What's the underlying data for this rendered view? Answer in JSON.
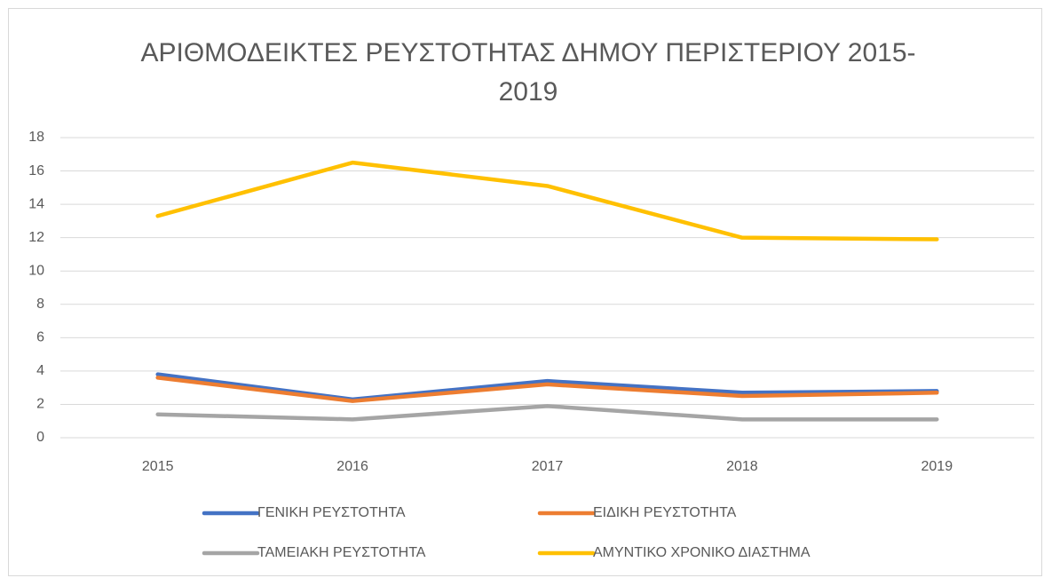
{
  "chart_data": {
    "type": "line",
    "title": "ΑΡΙΘΜΟΔΕΙΚΤΕΣ ΡΕΥΣΤΟΤΗΤΑΣ ΔΗΜΟΥ ΠΕΡΙΣΤΕΡΙΟΥ 2015-2019",
    "categories": [
      "2015",
      "2016",
      "2017",
      "2018",
      "2019"
    ],
    "series": [
      {
        "name": "ΓΕΝΙΚΗ ΡΕΥΣΤΟΤΗΤΑ",
        "color": "#4472c4",
        "values": [
          3.8,
          2.3,
          3.4,
          2.7,
          2.8
        ]
      },
      {
        "name": "ΕΙΔΙΚΗ ΡΕΥΣΤΟΤΗΤΑ",
        "color": "#ed7d31",
        "values": [
          3.6,
          2.2,
          3.2,
          2.5,
          2.7
        ]
      },
      {
        "name": "ΤΑΜΕΙΑΚΗ ΡΕΥΣΤΟΤΗΤΑ",
        "color": "#a5a5a5",
        "values": [
          1.4,
          1.1,
          1.9,
          1.1,
          1.1
        ]
      },
      {
        "name": "ΑΜΥΝΤΙΚΟ ΧΡΟΝΙΚΟ ΔΙΑΣΤΗΜΑ",
        "color": "#ffc000",
        "values": [
          13.3,
          16.5,
          15.1,
          12.0,
          11.9
        ]
      }
    ],
    "ylim": [
      0,
      18
    ],
    "yticks": [
      0,
      2,
      4,
      6,
      8,
      10,
      12,
      14,
      16,
      18
    ],
    "grid": true,
    "legend": "bottom"
  }
}
